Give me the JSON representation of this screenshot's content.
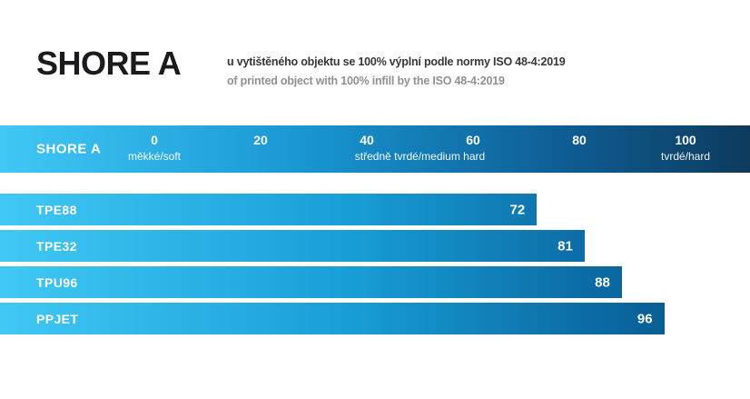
{
  "title": "SHORE A",
  "subtitle": {
    "line1": "u vytištěného objektu se 100% výplní podle normy ISO 48-4:2019",
    "line2": "of printed object with 100% infill by the ISO 48-4:2019"
  },
  "scale_header": {
    "label": "SHORE A"
  },
  "chart_data": {
    "type": "bar",
    "orientation": "horizontal",
    "title": "SHORE A",
    "categories": [
      "TPE88",
      "TPE32",
      "TPU96",
      "PPJET"
    ],
    "values": [
      72,
      81,
      88,
      96
    ],
    "value_labels": [
      "72",
      "81",
      "88",
      "96"
    ],
    "xlim": [
      0,
      100
    ],
    "x_ticks": [
      "0",
      "20",
      "40",
      "60",
      "80",
      "100"
    ],
    "axis_sublabels": [
      {
        "at": 0,
        "text": "měkké/soft"
      },
      {
        "at": 50,
        "text": "středně tvrdé/medium hard"
      },
      {
        "at": 100,
        "text": "tvrdé/hard"
      }
    ],
    "grid": false,
    "legend": false
  },
  "colors": {
    "gradient_start": "#41c8f5",
    "header_gradient_end": "#0d3b5e",
    "bar_gradient_end": "#005080",
    "title_color": "#1b1b1d",
    "subtitle_bold_color": "#37373a",
    "subtitle_gray_color": "#919194",
    "text_on_blue": "#ffffff",
    "background": "#ffffff"
  }
}
